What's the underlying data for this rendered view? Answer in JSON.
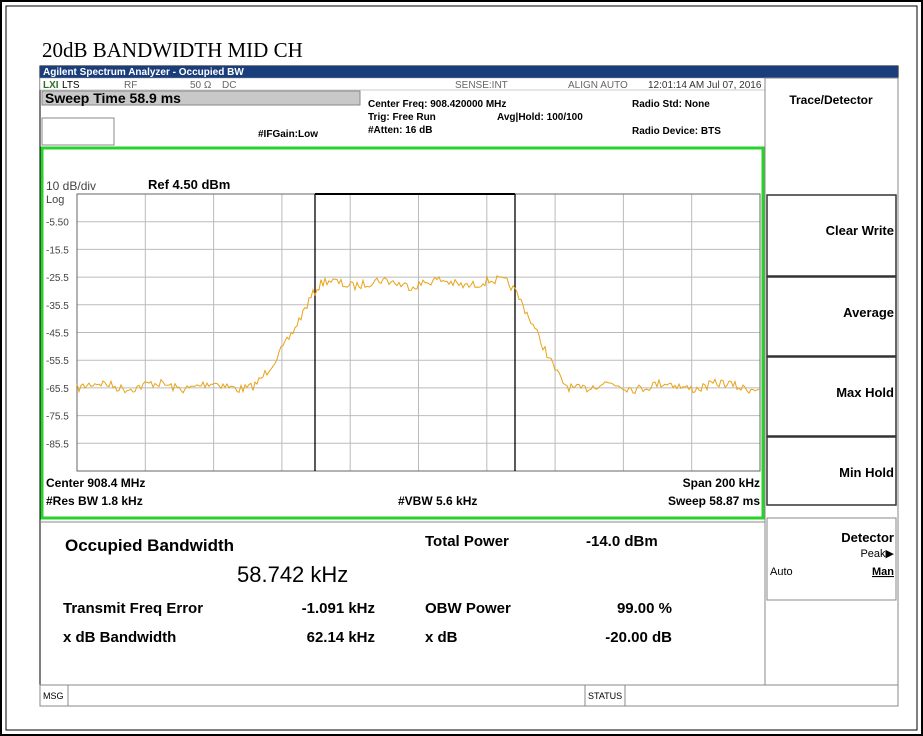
{
  "title": "20dB BANDWIDTH MID CH",
  "window_title": "Agilent Spectrum Analyzer - Occupied BW",
  "status_bar": {
    "lxi": "LXI",
    "lts": "LTS",
    "rf": "RF",
    "impedance": "50 Ω",
    "coupling": "DC",
    "sense": "SENSE:INT",
    "align": "ALIGN AUTO",
    "datetime": "12:01:14 AM Jul 07, 2016"
  },
  "settings": {
    "sweep_time": "Sweep Time 58.9 ms",
    "center_freq": "Center Freq: 908.420000 MHz",
    "trig": "Trig: Free Run",
    "avg_hold": "Avg|Hold: 100/100",
    "atten": "#Atten: 16 dB",
    "if_gain": "#IFGain:Low",
    "radio_std": "Radio Std: None",
    "radio_device": "Radio Device: BTS"
  },
  "plot": {
    "scale": "10 dB/div",
    "log": "Log",
    "ref": "Ref 4.50 dBm",
    "y_labels": [
      "-5.50",
      "-15.5",
      "-25.5",
      "-35.5",
      "-45.5",
      "-55.5",
      "-65.5",
      "-75.5",
      "-85.5"
    ],
    "center": "Center 908.4 MHz",
    "span": "Span 200 kHz",
    "res_bw": "#Res BW 1.8 kHz",
    "vbw": "#VBW 5.6 kHz",
    "sweep": "Sweep 58.87 ms"
  },
  "results": {
    "occupied_bw_label": "Occupied Bandwidth",
    "occupied_bw_value": "58.742 kHz",
    "total_power_label": "Total Power",
    "total_power_value": "-14.0 dBm",
    "freq_error_label": "Transmit Freq Error",
    "freq_error_value": "-1.091 kHz",
    "obw_power_label": "OBW Power",
    "obw_power_value": "99.00 %",
    "xdb_bw_label": "x dB Bandwidth",
    "xdb_bw_value": "62.14 kHz",
    "xdb_label": "x dB",
    "xdb_value": "-20.00 dB"
  },
  "footer": {
    "msg": "MSG",
    "status": "STATUS"
  },
  "softkeys": {
    "menu_title": "Trace/Detector",
    "buttons": [
      "Clear Write",
      "Average",
      "Max Hold",
      "Min Hold"
    ],
    "detector": "Detector",
    "detector_value": "Peak▶",
    "auto": "Auto",
    "man": "Man"
  }
}
